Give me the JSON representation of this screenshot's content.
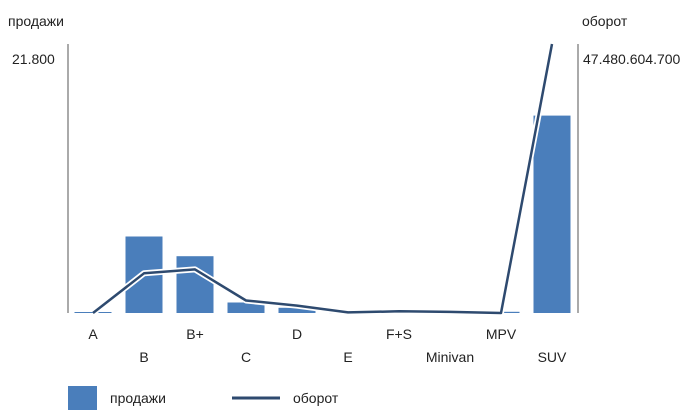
{
  "chart_data": {
    "type": "bar",
    "categories": [
      "A",
      "B",
      "B+",
      "C",
      "D",
      "E",
      "F+S",
      "Minivan",
      "MPV",
      "SUV"
    ],
    "series": [
      {
        "name": "продажи",
        "type": "bar",
        "axis": "left",
        "color": "#4a7ebb",
        "values": [
          80,
          6200,
          4600,
          850,
          420,
          70,
          110,
          110,
          100,
          16000
        ]
      },
      {
        "name": "оборот",
        "type": "line",
        "axis": "right",
        "color": "#2e4a6f",
        "values": [
          0,
          7000000000,
          7700000000,
          2200000000,
          1300000000,
          100000000,
          300000000,
          200000000,
          0,
          47480604700
        ]
      }
    ],
    "ylabel": "продажи",
    "y2label": "оборот",
    "ylim": [
      0,
      21800
    ],
    "y2lim": [
      0,
      47480604700
    ],
    "ymax_label": "21.800",
    "y2max_label": "47.480.604.700",
    "legend_position": "bottom-left",
    "grid": false
  }
}
